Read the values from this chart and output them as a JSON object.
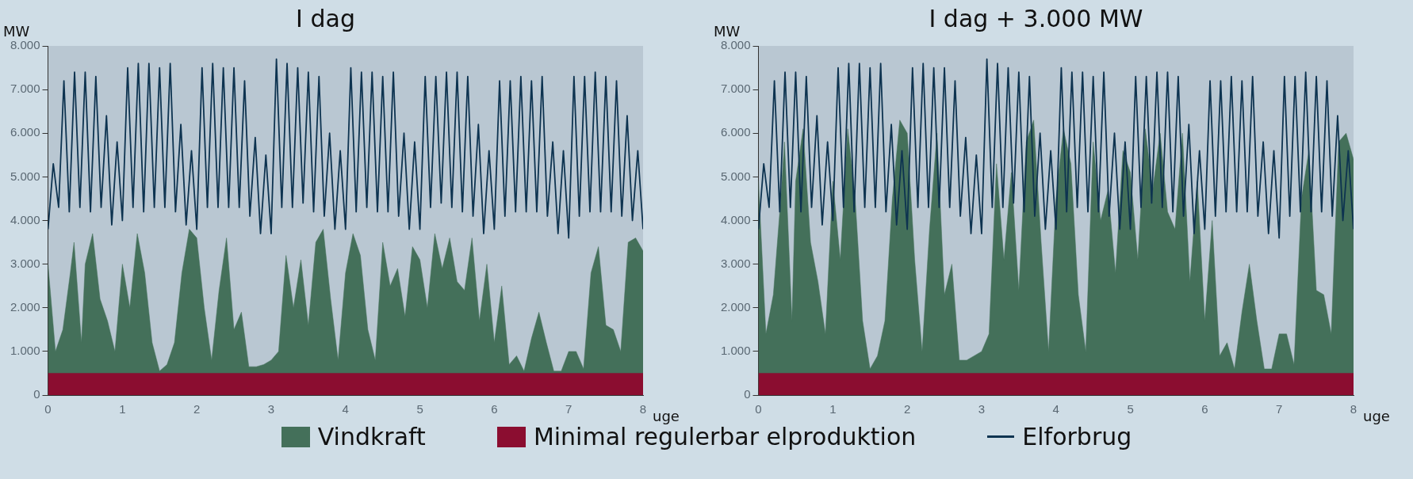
{
  "chart_data": [
    {
      "type": "area",
      "title": "I dag",
      "ylabel": "MW",
      "xlabel": "uge",
      "legend": "bottom",
      "xlim": [
        0,
        8
      ],
      "xticks": [
        0,
        1,
        2,
        3,
        4,
        5,
        6,
        7,
        8
      ],
      "ylim": [
        0,
        8000
      ],
      "yticks": [
        {
          "value": 0,
          "label": "0"
        },
        {
          "value": 1000,
          "label": "1.000"
        },
        {
          "value": 2000,
          "label": "2.000"
        },
        {
          "value": 3000,
          "label": "3.000"
        },
        {
          "value": 4000,
          "label": "4.000"
        },
        {
          "value": 5000,
          "label": "5.000"
        },
        {
          "value": 6000,
          "label": "6.000"
        },
        {
          "value": 7000,
          "label": "7.000"
        },
        {
          "value": 8000,
          "label": "8.000"
        }
      ],
      "series": [
        {
          "name": "Vindkraft",
          "type": "area",
          "color": "#44705a",
          "x": [
            0,
            0.1,
            0.2,
            0.3,
            0.35,
            0.45,
            0.5,
            0.6,
            0.7,
            0.8,
            0.9,
            1,
            1.1,
            1.2,
            1.3,
            1.4,
            1.5,
            1.6,
            1.7,
            1.8,
            1.9,
            2,
            2.1,
            2.2,
            2.3,
            2.4,
            2.5,
            2.6,
            2.7,
            2.8,
            2.9,
            3,
            3.1,
            3.2,
            3.3,
            3.4,
            3.5,
            3.6,
            3.7,
            3.8,
            3.9,
            4,
            4.1,
            4.2,
            4.3,
            4.4,
            4.5,
            4.6,
            4.7,
            4.8,
            4.9,
            5,
            5.1,
            5.2,
            5.3,
            5.4,
            5.5,
            5.6,
            5.7,
            5.8,
            5.9,
            6,
            6.1,
            6.2,
            6.3,
            6.4,
            6.5,
            6.6,
            6.7,
            6.8,
            6.9,
            7,
            7.1,
            7.2,
            7.3,
            7.4,
            7.5,
            7.6,
            7.7,
            7.8,
            7.9,
            8
          ],
          "values": [
            3000,
            1000,
            1500,
            2800,
            3500,
            1200,
            3000,
            3700,
            2200,
            1700,
            1000,
            3000,
            2000,
            3700,
            2800,
            1200,
            550,
            700,
            1200,
            2800,
            3800,
            3600,
            2000,
            800,
            2400,
            3600,
            1500,
            1900,
            650,
            650,
            700,
            800,
            1000,
            3200,
            2000,
            3100,
            1600,
            3500,
            3800,
            2200,
            800,
            2800,
            3700,
            3200,
            1500,
            800,
            3500,
            2500,
            2900,
            1800,
            3400,
            3100,
            2000,
            3700,
            2900,
            3600,
            2600,
            2400,
            3600,
            1700,
            3000,
            1200,
            2500,
            700,
            900,
            550,
            1300,
            1900,
            1200,
            550,
            550,
            1000,
            1000,
            600,
            2800,
            3400,
            1600,
            1500,
            1000,
            3500,
            3600,
            3300
          ]
        },
        {
          "name": "Minimal regulerbar elproduktion",
          "type": "area",
          "color": "#8b0d30",
          "x": [
            0,
            8
          ],
          "values": [
            500,
            500
          ]
        },
        {
          "name": "Elforbrug",
          "type": "line",
          "color": "#0d3350",
          "x": [
            0,
            0.071,
            0.143,
            0.214,
            0.286,
            0.357,
            0.429,
            0.5,
            0.571,
            0.643,
            0.714,
            0.786,
            0.857,
            0.929,
            1,
            1.071,
            1.143,
            1.214,
            1.286,
            1.357,
            1.429,
            1.5,
            1.571,
            1.643,
            1.714,
            1.786,
            1.857,
            1.929,
            2,
            2.071,
            2.143,
            2.214,
            2.286,
            2.357,
            2.429,
            2.5,
            2.571,
            2.643,
            2.714,
            2.786,
            2.857,
            2.929,
            3,
            3.071,
            3.143,
            3.214,
            3.286,
            3.357,
            3.429,
            3.5,
            3.571,
            3.643,
            3.714,
            3.786,
            3.857,
            3.929,
            4,
            4.071,
            4.143,
            4.214,
            4.286,
            4.357,
            4.429,
            4.5,
            4.571,
            4.643,
            4.714,
            4.786,
            4.857,
            4.929,
            5,
            5.071,
            5.143,
            5.214,
            5.286,
            5.357,
            5.429,
            5.5,
            5.571,
            5.643,
            5.714,
            5.786,
            5.857,
            5.929,
            6,
            6.071,
            6.143,
            6.214,
            6.286,
            6.357,
            6.429,
            6.5,
            6.571,
            6.643,
            6.714,
            6.786,
            6.857,
            6.929,
            7,
            7.071,
            7.143,
            7.214,
            7.286,
            7.357,
            7.429,
            7.5,
            7.571,
            7.643,
            7.714,
            7.786,
            7.857,
            7.929,
            8
          ],
          "values": [
            3800,
            5300,
            4300,
            7200,
            4200,
            7400,
            4300,
            7400,
            4200,
            7300,
            4300,
            6400,
            3900,
            5800,
            4000,
            7500,
            4300,
            7600,
            4200,
            7600,
            4300,
            7500,
            4300,
            7600,
            4200,
            6200,
            3900,
            5600,
            3800,
            7500,
            4300,
            7600,
            4300,
            7500,
            4300,
            7500,
            4300,
            7200,
            4100,
            5900,
            3700,
            5500,
            3700,
            7700,
            4300,
            7600,
            4300,
            7500,
            4400,
            7400,
            4200,
            7300,
            4100,
            6000,
            3800,
            5600,
            3800,
            7500,
            4200,
            7400,
            4300,
            7400,
            4200,
            7300,
            4200,
            7400,
            4100,
            6000,
            3800,
            5800,
            3800,
            7300,
            4300,
            7300,
            4400,
            7400,
            4300,
            7400,
            4200,
            7300,
            4100,
            6200,
            3700,
            5600,
            3800,
            7200,
            4100,
            7200,
            4200,
            7300,
            4200,
            7200,
            4200,
            7300,
            4100,
            5800,
            3700,
            5600,
            3600,
            7300,
            4100,
            7300,
            4200,
            7400,
            4200,
            7300,
            4200,
            7200,
            4100,
            6400,
            4000,
            5600,
            3800
          ]
        }
      ]
    },
    {
      "type": "area",
      "title": "I dag + 3.000 MW",
      "ylabel": "MW",
      "xlabel": "uge",
      "legend": "bottom",
      "xlim": [
        0,
        8
      ],
      "xticks": [
        0,
        1,
        2,
        3,
        4,
        5,
        6,
        7,
        8
      ],
      "ylim": [
        0,
        8000
      ],
      "yticks": [
        {
          "value": 0,
          "label": "0"
        },
        {
          "value": 1000,
          "label": "1.000"
        },
        {
          "value": 2000,
          "label": "2.000"
        },
        {
          "value": 3000,
          "label": "3.000"
        },
        {
          "value": 4000,
          "label": "4.000"
        },
        {
          "value": 5000,
          "label": "5.000"
        },
        {
          "value": 6000,
          "label": "6.000"
        },
        {
          "value": 7000,
          "label": "7.000"
        },
        {
          "value": 8000,
          "label": "8.000"
        }
      ],
      "series": [
        {
          "name": "Vindkraft",
          "type": "area",
          "color": "#44705a",
          "x": [
            0,
            0.1,
            0.2,
            0.3,
            0.35,
            0.45,
            0.5,
            0.6,
            0.7,
            0.8,
            0.9,
            1,
            1.1,
            1.2,
            1.3,
            1.4,
            1.5,
            1.6,
            1.7,
            1.8,
            1.9,
            2,
            2.1,
            2.2,
            2.3,
            2.4,
            2.5,
            2.6,
            2.7,
            2.8,
            2.9,
            3,
            3.1,
            3.2,
            3.3,
            3.4,
            3.5,
            3.6,
            3.7,
            3.8,
            3.9,
            4,
            4.1,
            4.2,
            4.3,
            4.4,
            4.5,
            4.6,
            4.7,
            4.8,
            4.9,
            5,
            5.1,
            5.2,
            5.3,
            5.4,
            5.5,
            5.6,
            5.7,
            5.8,
            5.9,
            6,
            6.1,
            6.2,
            6.3,
            6.4,
            6.5,
            6.6,
            6.7,
            6.8,
            6.9,
            7,
            7.1,
            7.2,
            7.3,
            7.4,
            7.5,
            7.6,
            7.7,
            7.8,
            7.9,
            8
          ],
          "values": [
            4900,
            1400,
            2300,
            4500,
            5800,
            1700,
            4900,
            6100,
            3500,
            2600,
            1400,
            4900,
            3100,
            6100,
            4500,
            1700,
            600,
            900,
            1700,
            4500,
            6300,
            6000,
            3100,
            1000,
            3800,
            6000,
            2300,
            3000,
            800,
            800,
            900,
            1000,
            1400,
            5300,
            3100,
            5100,
            2400,
            5800,
            6300,
            3500,
            1000,
            4500,
            6100,
            5300,
            2300,
            1000,
            5800,
            4000,
            4700,
            2800,
            5600,
            5100,
            3100,
            6100,
            4700,
            6000,
            4200,
            3800,
            6000,
            2600,
            4900,
            1700,
            4000,
            900,
            1200,
            600,
            1900,
            3000,
            1700,
            600,
            600,
            1400,
            1400,
            700,
            4500,
            5600,
            2400,
            2300,
            1400,
            5800,
            6000,
            5400
          ]
        },
        {
          "name": "Minimal regulerbar elproduktion",
          "type": "area",
          "color": "#8b0d30",
          "x": [
            0,
            8
          ],
          "values": [
            500,
            500
          ]
        },
        {
          "name": "Elforbrug",
          "type": "line",
          "color": "#0d3350",
          "x": [
            0,
            0.071,
            0.143,
            0.214,
            0.286,
            0.357,
            0.429,
            0.5,
            0.571,
            0.643,
            0.714,
            0.786,
            0.857,
            0.929,
            1,
            1.071,
            1.143,
            1.214,
            1.286,
            1.357,
            1.429,
            1.5,
            1.571,
            1.643,
            1.714,
            1.786,
            1.857,
            1.929,
            2,
            2.071,
            2.143,
            2.214,
            2.286,
            2.357,
            2.429,
            2.5,
            2.571,
            2.643,
            2.714,
            2.786,
            2.857,
            2.929,
            3,
            3.071,
            3.143,
            3.214,
            3.286,
            3.357,
            3.429,
            3.5,
            3.571,
            3.643,
            3.714,
            3.786,
            3.857,
            3.929,
            4,
            4.071,
            4.143,
            4.214,
            4.286,
            4.357,
            4.429,
            4.5,
            4.571,
            4.643,
            4.714,
            4.786,
            4.857,
            4.929,
            5,
            5.071,
            5.143,
            5.214,
            5.286,
            5.357,
            5.429,
            5.5,
            5.571,
            5.643,
            5.714,
            5.786,
            5.857,
            5.929,
            6,
            6.071,
            6.143,
            6.214,
            6.286,
            6.357,
            6.429,
            6.5,
            6.571,
            6.643,
            6.714,
            6.786,
            6.857,
            6.929,
            7,
            7.071,
            7.143,
            7.214,
            7.286,
            7.357,
            7.429,
            7.5,
            7.571,
            7.643,
            7.714,
            7.786,
            7.857,
            7.929,
            8
          ],
          "values": [
            3800,
            5300,
            4300,
            7200,
            4200,
            7400,
            4300,
            7400,
            4200,
            7300,
            4300,
            6400,
            3900,
            5800,
            4000,
            7500,
            4300,
            7600,
            4200,
            7600,
            4300,
            7500,
            4300,
            7600,
            4200,
            6200,
            3900,
            5600,
            3800,
            7500,
            4300,
            7600,
            4300,
            7500,
            4300,
            7500,
            4300,
            7200,
            4100,
            5900,
            3700,
            5500,
            3700,
            7700,
            4300,
            7600,
            4300,
            7500,
            4400,
            7400,
            4200,
            7300,
            4100,
            6000,
            3800,
            5600,
            3800,
            7500,
            4200,
            7400,
            4300,
            7400,
            4200,
            7300,
            4200,
            7400,
            4100,
            6000,
            3800,
            5800,
            3800,
            7300,
            4300,
            7300,
            4400,
            7400,
            4300,
            7400,
            4200,
            7300,
            4100,
            6200,
            3700,
            5600,
            3800,
            7200,
            4100,
            7200,
            4200,
            7300,
            4200,
            7200,
            4200,
            7300,
            4100,
            5800,
            3700,
            5600,
            3600,
            7300,
            4100,
            7300,
            4200,
            7400,
            4200,
            7300,
            4200,
            7200,
            4100,
            6400,
            4000,
            5600,
            3800
          ]
        }
      ]
    }
  ]
}
